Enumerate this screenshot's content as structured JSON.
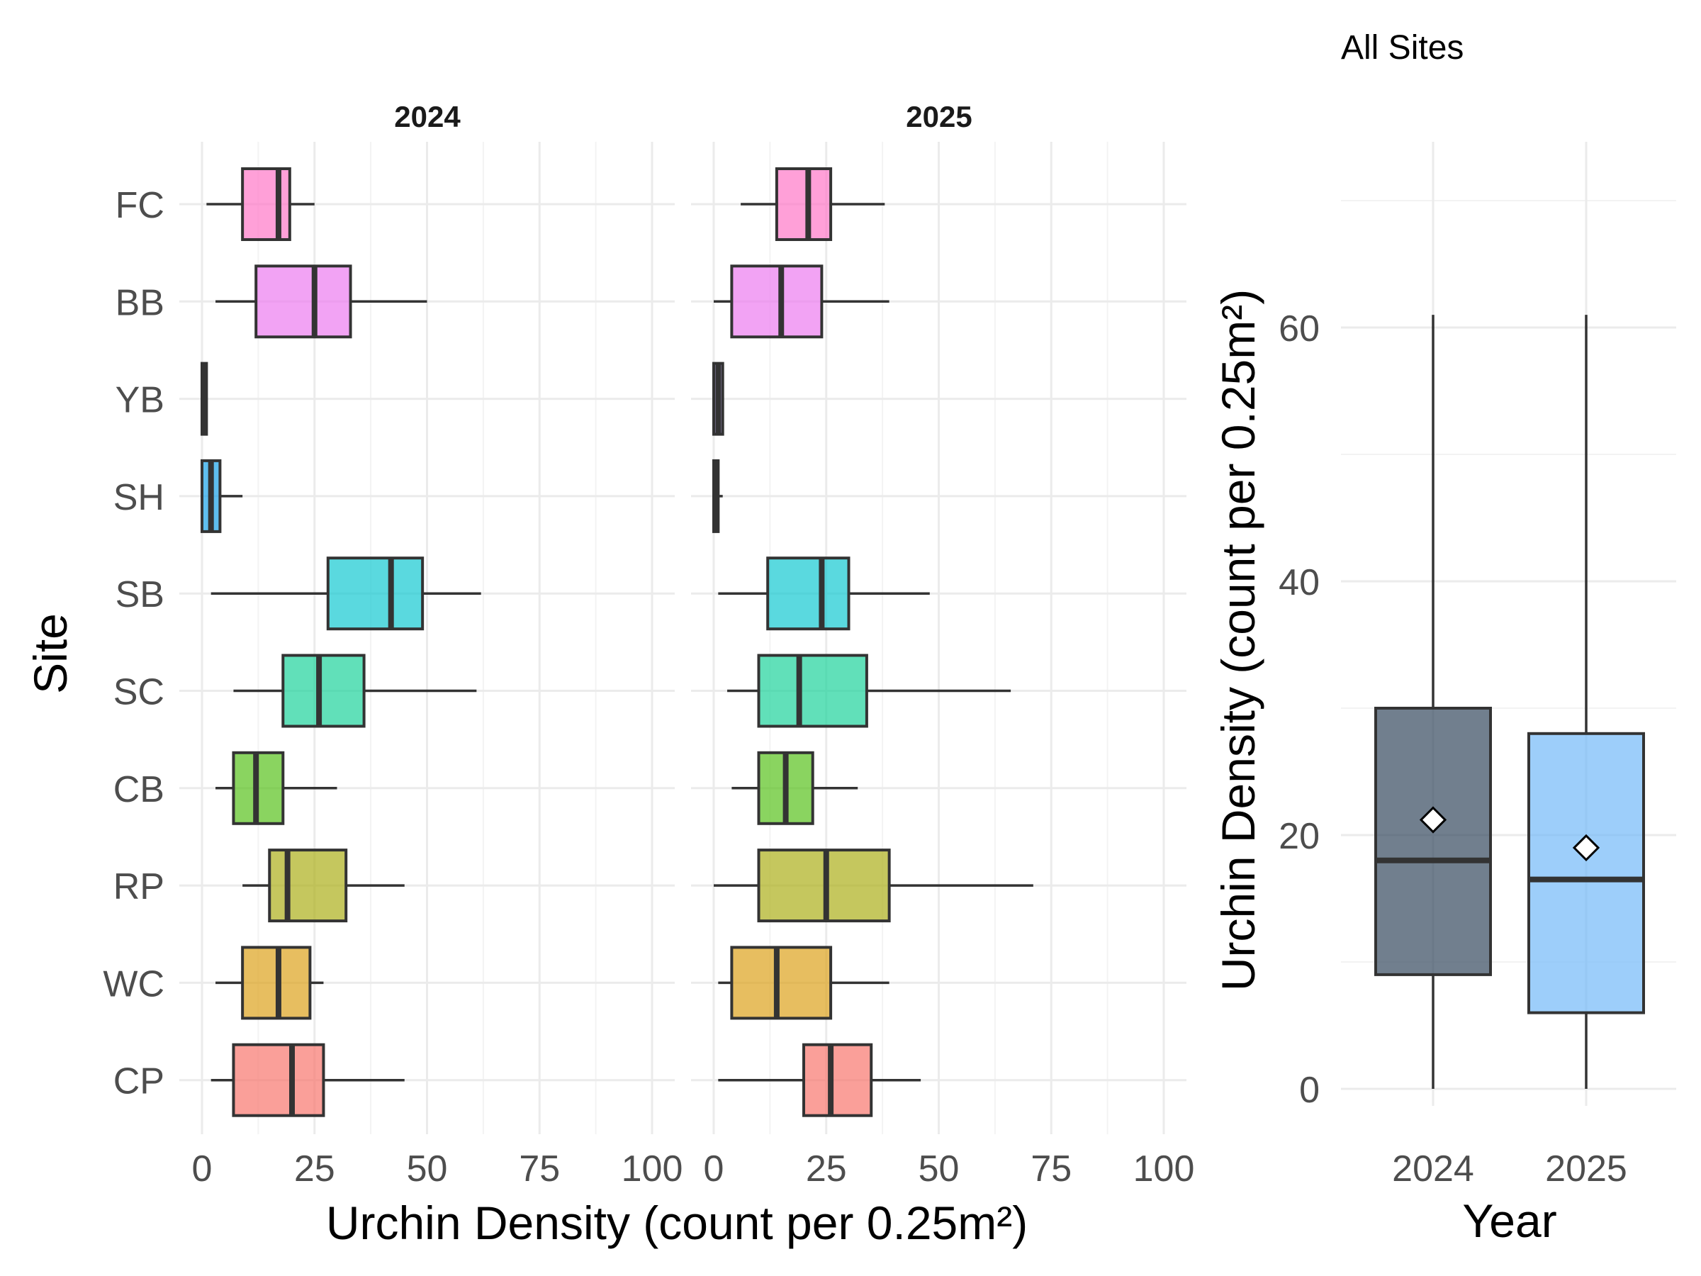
{
  "chart_data": [
    {
      "type": "boxplot",
      "orientation": "horizontal",
      "facets": [
        "2024",
        "2025"
      ],
      "xlabel": "Urchin Density (count per 0.25m²)",
      "ylabel": "Site",
      "xlim": [
        0,
        100
      ],
      "xticks": [
        0,
        25,
        50,
        75,
        100
      ],
      "grid": true,
      "categories": [
        "FC",
        "BB",
        "YB",
        "SH",
        "SB",
        "SC",
        "CB",
        "RP",
        "WC",
        "CP"
      ],
      "colors": {
        "FC": "#FF77C8",
        "BB": "#EC7CF0",
        "YB": "#B39BFF",
        "SH": "#1AA3E8",
        "SB": "#14C9D2",
        "SC": "#1ED39B",
        "CB": "#58C21C",
        "RP": "#ADAF1A",
        "WC": "#DDA21D",
        "CP": "#F8766D"
      },
      "series": [
        {
          "facet": "2024",
          "boxes": [
            {
              "site": "FC",
              "min": 1,
              "q1": 9,
              "median": 17,
              "q3": 19.5,
              "max": 25
            },
            {
              "site": "BB",
              "min": 3,
              "q1": 12,
              "median": 25,
              "q3": 33,
              "max": 50
            },
            {
              "site": "YB",
              "min": 0,
              "q1": 0,
              "median": 0.5,
              "q3": 1,
              "max": 1
            },
            {
              "site": "SH",
              "min": 0,
              "q1": 0,
              "median": 2,
              "q3": 4,
              "max": 9
            },
            {
              "site": "SB",
              "min": 2,
              "q1": 28,
              "median": 42,
              "q3": 49,
              "max": 62
            },
            {
              "site": "SC",
              "min": 7,
              "q1": 18,
              "median": 26,
              "q3": 36,
              "max": 61
            },
            {
              "site": "CB",
              "min": 3,
              "q1": 7,
              "median": 12,
              "q3": 18,
              "max": 30
            },
            {
              "site": "RP",
              "min": 9,
              "q1": 15,
              "median": 19,
              "q3": 32,
              "max": 45
            },
            {
              "site": "WC",
              "min": 3,
              "q1": 9,
              "median": 17,
              "q3": 24,
              "max": 27
            },
            {
              "site": "CP",
              "min": 2,
              "q1": 7,
              "median": 20,
              "q3": 27,
              "max": 45
            }
          ]
        },
        {
          "facet": "2025",
          "boxes": [
            {
              "site": "FC",
              "min": 6,
              "q1": 14,
              "median": 21,
              "q3": 26,
              "max": 38
            },
            {
              "site": "BB",
              "min": 0,
              "q1": 4,
              "median": 15,
              "q3": 24,
              "max": 39
            },
            {
              "site": "YB",
              "min": 0,
              "q1": 0,
              "median": 1,
              "q3": 2,
              "max": 2
            },
            {
              "site": "SH",
              "min": 0,
              "q1": 0,
              "median": 0.5,
              "q3": 1,
              "max": 2
            },
            {
              "site": "SB",
              "min": 1,
              "q1": 12,
              "median": 24,
              "q3": 30,
              "max": 48
            },
            {
              "site": "SC",
              "min": 3,
              "q1": 10,
              "median": 19,
              "q3": 34,
              "max": 66
            },
            {
              "site": "CB",
              "min": 4,
              "q1": 10,
              "median": 16,
              "q3": 22,
              "max": 32
            },
            {
              "site": "RP",
              "min": 0,
              "q1": 10,
              "median": 25,
              "q3": 39,
              "max": 71
            },
            {
              "site": "WC",
              "min": 1,
              "q1": 4,
              "median": 14,
              "q3": 26,
              "max": 39
            },
            {
              "site": "CP",
              "min": 1,
              "q1": 20,
              "median": 26,
              "q3": 35,
              "max": 46
            }
          ]
        }
      ]
    },
    {
      "type": "boxplot",
      "orientation": "vertical",
      "title": "All Sites",
      "xlabel": "Year",
      "ylabel": "Urchin Density (count per 0.25m²)",
      "categories": [
        "2024",
        "2025"
      ],
      "ylim": [
        0,
        70
      ],
      "yticks": [
        0,
        20,
        40,
        60
      ],
      "grid": true,
      "boxes": [
        {
          "year": "2024",
          "min": 0,
          "q1": 9,
          "median": 18,
          "q3": 30,
          "max": 61,
          "mean": 21.2,
          "color": "#34495E"
        },
        {
          "year": "2025",
          "min": 0,
          "q1": 6,
          "median": 16.5,
          "q3": 28,
          "max": 61,
          "mean": 19,
          "color": "#74B9F8"
        }
      ]
    }
  ]
}
